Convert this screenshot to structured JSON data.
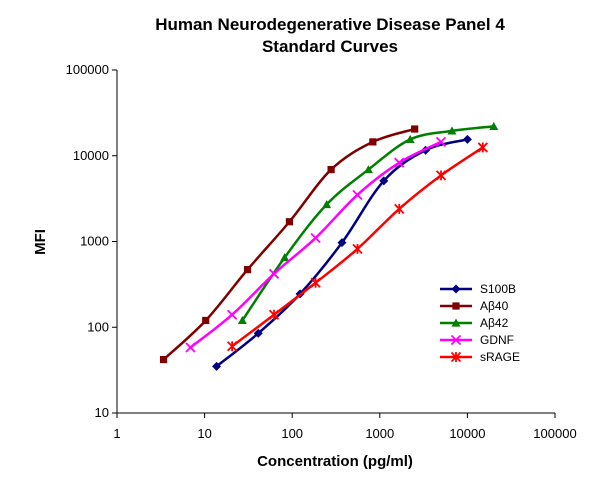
{
  "chart_data": {
    "type": "line",
    "title_line1": "Human Neurodegenerative Disease Panel 4",
    "title_line2": "Standard Curves",
    "xlabel": "Concentration (pg/ml)",
    "ylabel": "MFI",
    "x_scale": "log",
    "y_scale": "log",
    "xlim": [
      1,
      100000
    ],
    "ylim": [
      10,
      100000
    ],
    "x_ticks": [
      "1",
      "10",
      "100",
      "1000",
      "10000",
      "100000"
    ],
    "y_ticks": [
      "10",
      "100",
      "1000",
      "10000",
      "100000"
    ],
    "grid": false,
    "legend_position": "right",
    "series": [
      {
        "name": "S100B",
        "color": "#000080",
        "marker": "diamond",
        "x": [
          13.7,
          41,
          123,
          370,
          1111,
          3333,
          10000
        ],
        "y": [
          35,
          85,
          245,
          970,
          5100,
          11600,
          15500
        ]
      },
      {
        "name": "Aβ40",
        "color": "#800000",
        "marker": "square",
        "x": [
          3.4,
          10.3,
          30.9,
          93,
          278,
          833,
          2500
        ],
        "y": [
          42,
          120,
          470,
          1700,
          6900,
          14500,
          20500
        ]
      },
      {
        "name": "Aβ42",
        "color": "#008000",
        "marker": "triangle",
        "x": [
          27,
          82,
          247,
          741,
          2222,
          6667,
          20000
        ],
        "y": [
          120,
          650,
          2700,
          6900,
          15500,
          19500,
          22000
        ]
      },
      {
        "name": "GDNF",
        "color": "#FF00FF",
        "marker": "x",
        "x": [
          6.9,
          20.6,
          62,
          185,
          556,
          1667,
          5000
        ],
        "y": [
          58,
          140,
          420,
          1100,
          3500,
          8300,
          14500
        ]
      },
      {
        "name": "sRAGE",
        "color": "#FF0000",
        "marker": "star",
        "x": [
          20.6,
          62,
          185,
          556,
          1667,
          5000,
          15000
        ],
        "y": [
          60,
          140,
          330,
          820,
          2400,
          5900,
          12500
        ]
      }
    ]
  }
}
